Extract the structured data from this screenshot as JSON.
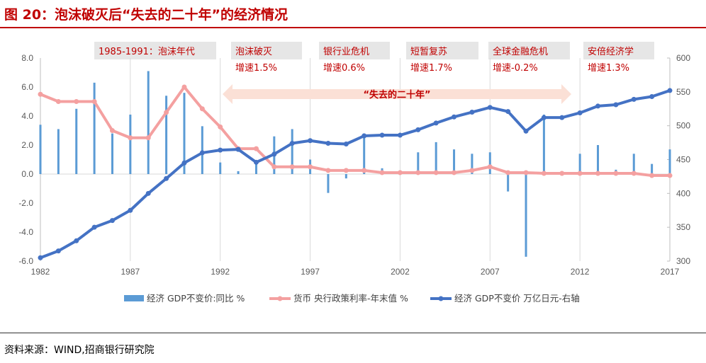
{
  "title": "图 20：泡沫破灭后“失去的二十年”的经济情况",
  "source": "资料来源：WIND,招商银行研究院",
  "colors": {
    "bar": "#5b9bd5",
    "rate": "#f4a0a0",
    "gdp": "#4472c4",
    "accent": "#c00000",
    "arrow": "#fbe0d6",
    "annotation_box": "#e6e6e6"
  },
  "annotations": [
    {
      "line1": "1985-1991：泡沫年代",
      "line2": ""
    },
    {
      "line1": "泡沫破灭",
      "line2": "增速1.5%"
    },
    {
      "line1": "银行业危机",
      "line2": "增速0.6%"
    },
    {
      "line1": "短暂复苏",
      "line2": "增速1.7%"
    },
    {
      "line1": "全球金融危机",
      "line2": "增速-0.2%"
    },
    {
      "line1": "安倍经济学",
      "line2": "增速1.3%"
    }
  ],
  "arrow_label": "“失去的二十年”",
  "chart_data": {
    "type": "bar+line",
    "x": [
      1982,
      1983,
      1984,
      1985,
      1986,
      1987,
      1988,
      1989,
      1990,
      1991,
      1992,
      1993,
      1994,
      1995,
      1996,
      1997,
      1998,
      1999,
      2000,
      2001,
      2002,
      2003,
      2004,
      2005,
      2006,
      2007,
      2008,
      2009,
      2010,
      2011,
      2012,
      2013,
      2014,
      2015,
      2016,
      2017
    ],
    "x_ticks": [
      "1982",
      "1987",
      "1992",
      "1997",
      "2002",
      "2007",
      "2012",
      "2017"
    ],
    "y_left_ticks": [
      "8.0",
      "6.0",
      "4.0",
      "2.0",
      "0.0",
      "-2.0",
      "-4.0",
      "-6.0"
    ],
    "y_right_ticks": [
      "600",
      "550",
      "500",
      "450",
      "400",
      "350",
      "300"
    ],
    "ylim_left": [
      -6,
      8
    ],
    "ylim_right": [
      300,
      600
    ],
    "grid": "vertical every 5 years",
    "legend_position": "bottom",
    "series": [
      {
        "name": "经济 GDP不变价:同比 %",
        "type": "bar",
        "axis": "left",
        "values": [
          3.4,
          3.1,
          4.5,
          6.3,
          2.8,
          4.1,
          7.1,
          5.4,
          5.6,
          3.3,
          0.8,
          0.2,
          0.9,
          2.6,
          3.1,
          1.0,
          -1.3,
          -0.3,
          2.8,
          0.4,
          0.1,
          1.5,
          2.2,
          1.7,
          1.4,
          1.5,
          -1.2,
          -5.7,
          4.1,
          0.0,
          1.4,
          2.0,
          0.3,
          1.4,
          0.7,
          1.7
        ]
      },
      {
        "name": "货币 央行政策利率-年末值 %",
        "type": "line",
        "axis": "left",
        "values": [
          5.5,
          5.0,
          5.0,
          5.0,
          3.0,
          2.5,
          2.5,
          4.25,
          6.0,
          4.5,
          3.25,
          1.75,
          1.75,
          0.5,
          0.5,
          0.5,
          0.25,
          0.25,
          0.25,
          0.1,
          0.1,
          0.1,
          0.1,
          0.1,
          0.25,
          0.5,
          0.1,
          0.1,
          0.05,
          0.05,
          0.05,
          0.05,
          0.05,
          0.05,
          -0.1,
          -0.1
        ]
      },
      {
        "name": "经济 GDP不变价 万亿日元-右轴",
        "type": "line",
        "axis": "right",
        "values": [
          305,
          315,
          330,
          350,
          360,
          375,
          400,
          422,
          445,
          460,
          464,
          465,
          446,
          458,
          474,
          478,
          474,
          473,
          485,
          486,
          486,
          494,
          504,
          513,
          520,
          527,
          521,
          492,
          512,
          512,
          519,
          529,
          531,
          539,
          543,
          552
        ]
      }
    ]
  }
}
